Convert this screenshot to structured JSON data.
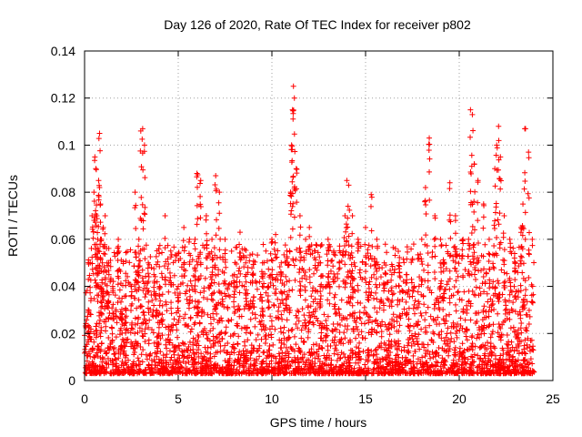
{
  "chart_data": {
    "type": "scatter",
    "title": "Day 126 of 2020, Rate Of TEC Index for receiver p802",
    "xlabel": "GPS time / hours",
    "ylabel": "ROTI / TECUs",
    "xlim": [
      0,
      25
    ],
    "ylim": [
      0,
      0.14
    ],
    "xticks": [
      0,
      5,
      10,
      15,
      20,
      25
    ],
    "yticks": [
      0,
      0.02,
      0.04,
      0.06,
      0.08,
      0.1,
      0.12,
      0.14
    ],
    "xtick_labels": [
      "0",
      "5",
      "10",
      "15",
      "20",
      "25"
    ],
    "ytick_labels": [
      "0",
      "0.02",
      "0.04",
      "0.06",
      "0.08",
      "0.1",
      "0.12",
      "0.14"
    ],
    "grid": true,
    "marker": "+",
    "color": "#ff0000",
    "data_x_range": [
      0,
      24
    ],
    "points_note_density": "dense",
    "x": [
      0.2,
      0.3,
      0.4,
      0.5,
      0.55,
      0.6,
      0.65,
      0.7,
      0.75,
      0.8,
      0.85,
      0.9,
      0.95,
      1.0,
      1.1,
      1.2,
      1.3,
      1.5,
      1.8,
      2.0,
      2.2,
      2.5,
      2.7,
      2.9,
      3.0,
      3.1,
      3.2,
      3.4,
      3.7,
      4.0,
      4.3,
      4.6,
      5.0,
      5.3,
      5.6,
      5.9,
      6.0,
      6.2,
      6.5,
      6.8,
      7.0,
      7.2,
      7.5,
      8.0,
      8.3,
      8.6,
      9.0,
      9.5,
      9.8,
      10.0,
      10.2,
      10.5,
      10.8,
      11.0,
      11.05,
      11.1,
      11.15,
      11.2,
      11.3,
      11.5,
      11.8,
      12.0,
      12.3,
      12.6,
      13.0,
      13.3,
      13.6,
      13.9,
      14.0,
      14.1,
      14.3,
      14.6,
      15.0,
      15.3,
      15.6,
      16.0,
      16.4,
      16.8,
      17.2,
      17.6,
      18.0,
      18.2,
      18.4,
      18.7,
      19.0,
      19.2,
      19.5,
      19.8,
      20.2,
      20.5,
      20.6,
      20.7,
      20.8,
      21.0,
      21.3,
      21.6,
      21.9,
      22.0,
      22.1,
      22.2,
      22.4,
      22.7,
      23.0,
      23.3,
      23.4,
      23.5,
      23.7,
      23.9
    ],
    "y": [
      0.03,
      0.05,
      0.07,
      0.08,
      0.095,
      0.09,
      0.07,
      0.06,
      0.085,
      0.105,
      0.075,
      0.06,
      0.05,
      0.065,
      0.07,
      0.05,
      0.045,
      0.04,
      0.06,
      0.035,
      0.03,
      0.04,
      0.08,
      0.06,
      0.106,
      0.107,
      0.1,
      0.05,
      0.045,
      0.04,
      0.07,
      0.055,
      0.04,
      0.065,
      0.06,
      0.06,
      0.088,
      0.085,
      0.07,
      0.06,
      0.087,
      0.08,
      0.06,
      0.045,
      0.063,
      0.05,
      0.045,
      0.05,
      0.04,
      0.06,
      0.062,
      0.05,
      0.055,
      0.08,
      0.1,
      0.115,
      0.125,
      0.12,
      0.09,
      0.07,
      0.06,
      0.065,
      0.055,
      0.05,
      0.06,
      0.055,
      0.05,
      0.07,
      0.085,
      0.083,
      0.07,
      0.06,
      0.065,
      0.079,
      0.06,
      0.05,
      0.045,
      0.05,
      0.045,
      0.04,
      0.06,
      0.082,
      0.103,
      0.07,
      0.06,
      0.05,
      0.084,
      0.07,
      0.06,
      0.06,
      0.115,
      0.113,
      0.092,
      0.085,
      0.075,
      0.06,
      0.09,
      0.1,
      0.108,
      0.095,
      0.07,
      0.06,
      0.05,
      0.065,
      0.075,
      0.107,
      0.097,
      0.06
    ]
  }
}
